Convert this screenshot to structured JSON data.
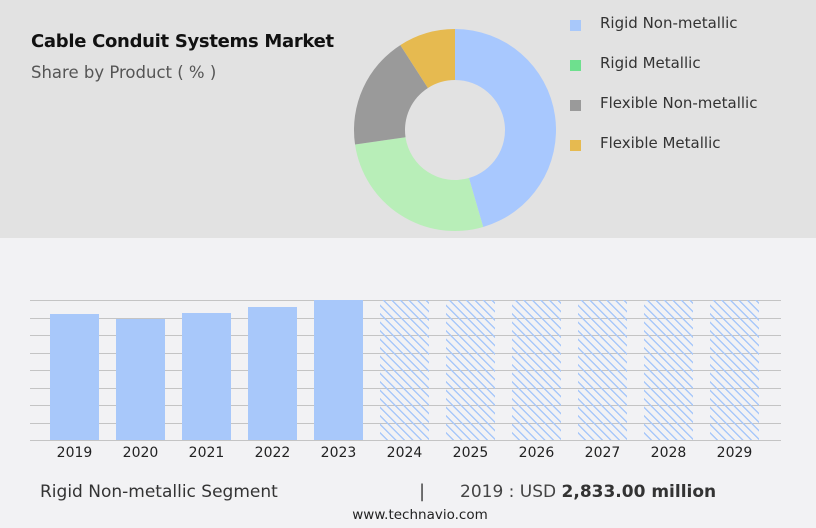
{
  "header": {
    "title": "Cable Conduit Systems Market",
    "subtitle": "Share by Product ( % )"
  },
  "legend": {
    "items": [
      {
        "label": "Rigid Non-metallic",
        "color": "#a8c8fa"
      },
      {
        "label": "Rigid Metallic",
        "color": "#6ee08e"
      },
      {
        "label": "Flexible Non-metallic",
        "color": "#9a9a9a"
      },
      {
        "label": "Flexible Metallic",
        "color": "#e6ba50"
      }
    ]
  },
  "footer": {
    "segment_label": "Rigid Non-metallic Segment",
    "separator": "|",
    "value_prefix": "2019 : USD ",
    "value_bold": "2,833.00 million",
    "source": "www.technavio.com"
  },
  "colors": {
    "top_panel_bg": "#e2e2e2",
    "bottom_bg": "#f2f2f4",
    "bar": "#a8c8fa",
    "gridline": "#c4c4c4"
  },
  "chart_data": [
    {
      "type": "pie",
      "variant": "donut",
      "title": "Cable Conduit Systems Market",
      "subtitle": "Share by Product ( % )",
      "categories": [
        "Rigid Non-metallic",
        "Rigid Metallic",
        "Flexible Non-metallic",
        "Flexible Metallic"
      ],
      "values": [
        45.5,
        27.2,
        18.2,
        9.1
      ],
      "colors": [
        "#a8c8fe",
        "#b8eeb8",
        "#9a9a9a",
        "#e6ba50"
      ],
      "start_angle_deg": 0,
      "direction": "clockwise",
      "legend_position": "right",
      "data_labels": false
    },
    {
      "type": "bar",
      "title": "Rigid Non-metallic Segment",
      "categories": [
        "2019",
        "2020",
        "2021",
        "2022",
        "2023",
        "2024",
        "2025",
        "2026",
        "2027",
        "2028",
        "2029"
      ],
      "series": [
        {
          "name": "Rigid Non-metallic (USD million)",
          "values": [
            2833,
            2720,
            2855,
            2990,
            3147,
            null,
            null,
            null,
            null,
            null,
            null
          ]
        }
      ],
      "forecast_categories": [
        "2024",
        "2025",
        "2026",
        "2027",
        "2028",
        "2029"
      ],
      "forecast_style": "hatched, full height (values not disclosed)",
      "annotation": "2019 : USD 2,833.00 million",
      "xlabel": "",
      "ylabel": "",
      "y_axis_visible": false,
      "ylim": [
        0,
        3147
      ],
      "grid": true,
      "gridline_count": 9
    }
  ]
}
